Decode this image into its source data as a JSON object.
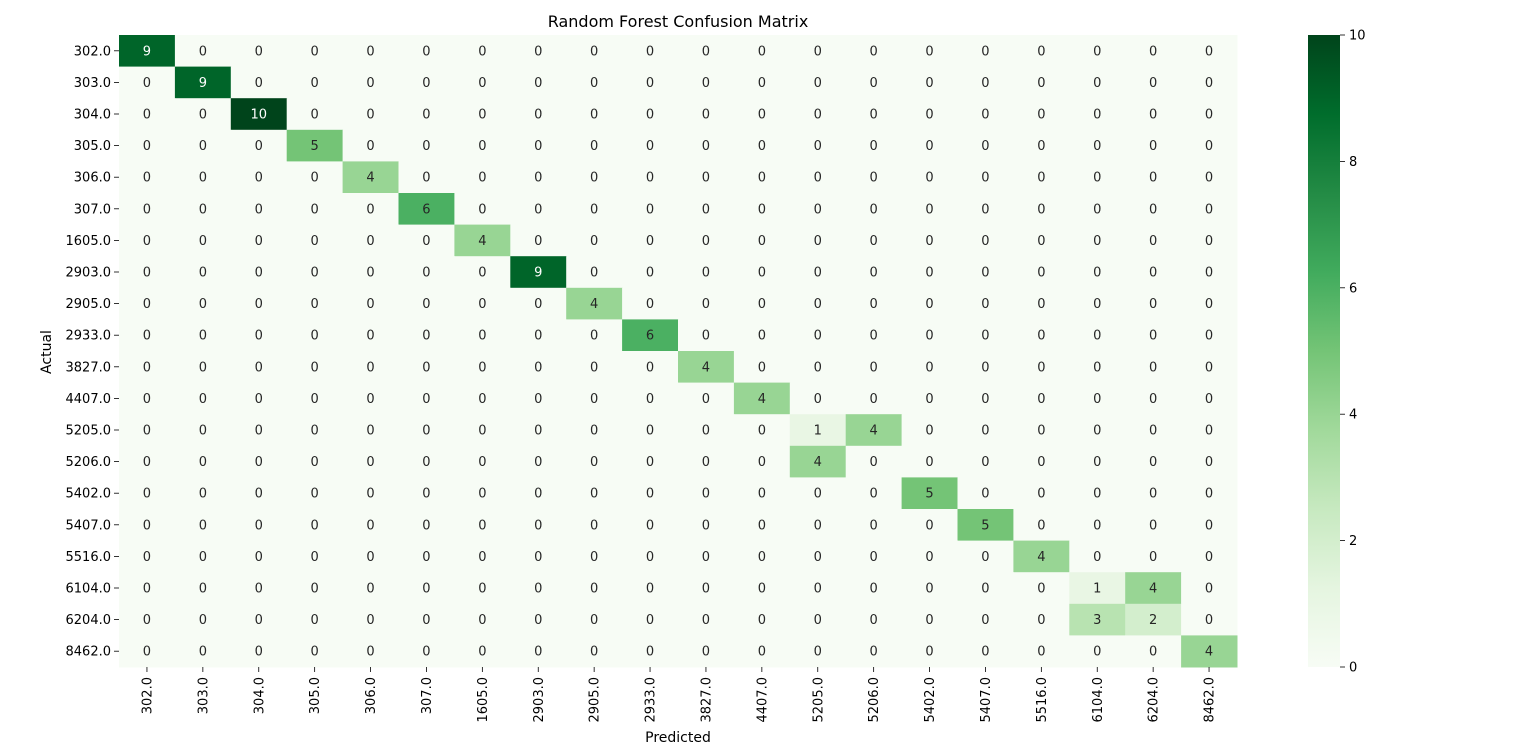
{
  "chart_data": {
    "type": "heatmap",
    "title": "Random Forest Confusion Matrix",
    "xlabel": "Predicted",
    "ylabel": "Actual",
    "x_categories": [
      "302.0",
      "303.0",
      "304.0",
      "305.0",
      "306.0",
      "307.0",
      "1605.0",
      "2903.0",
      "2905.0",
      "2933.0",
      "3827.0",
      "4407.0",
      "5205.0",
      "5206.0",
      "5402.0",
      "5407.0",
      "5516.0",
      "6104.0",
      "6204.0",
      "8462.0"
    ],
    "y_categories": [
      "302.0",
      "303.0",
      "304.0",
      "305.0",
      "306.0",
      "307.0",
      "1605.0",
      "2903.0",
      "2905.0",
      "2933.0",
      "3827.0",
      "4407.0",
      "5205.0",
      "5206.0",
      "5402.0",
      "5407.0",
      "5516.0",
      "6104.0",
      "6204.0",
      "8462.0"
    ],
    "values": [
      [
        9,
        0,
        0,
        0,
        0,
        0,
        0,
        0,
        0,
        0,
        0,
        0,
        0,
        0,
        0,
        0,
        0,
        0,
        0,
        0
      ],
      [
        0,
        9,
        0,
        0,
        0,
        0,
        0,
        0,
        0,
        0,
        0,
        0,
        0,
        0,
        0,
        0,
        0,
        0,
        0,
        0
      ],
      [
        0,
        0,
        10,
        0,
        0,
        0,
        0,
        0,
        0,
        0,
        0,
        0,
        0,
        0,
        0,
        0,
        0,
        0,
        0,
        0
      ],
      [
        0,
        0,
        0,
        5,
        0,
        0,
        0,
        0,
        0,
        0,
        0,
        0,
        0,
        0,
        0,
        0,
        0,
        0,
        0,
        0
      ],
      [
        0,
        0,
        0,
        0,
        4,
        0,
        0,
        0,
        0,
        0,
        0,
        0,
        0,
        0,
        0,
        0,
        0,
        0,
        0,
        0
      ],
      [
        0,
        0,
        0,
        0,
        0,
        6,
        0,
        0,
        0,
        0,
        0,
        0,
        0,
        0,
        0,
        0,
        0,
        0,
        0,
        0
      ],
      [
        0,
        0,
        0,
        0,
        0,
        0,
        4,
        0,
        0,
        0,
        0,
        0,
        0,
        0,
        0,
        0,
        0,
        0,
        0,
        0
      ],
      [
        0,
        0,
        0,
        0,
        0,
        0,
        0,
        9,
        0,
        0,
        0,
        0,
        0,
        0,
        0,
        0,
        0,
        0,
        0,
        0
      ],
      [
        0,
        0,
        0,
        0,
        0,
        0,
        0,
        0,
        4,
        0,
        0,
        0,
        0,
        0,
        0,
        0,
        0,
        0,
        0,
        0
      ],
      [
        0,
        0,
        0,
        0,
        0,
        0,
        0,
        0,
        0,
        6,
        0,
        0,
        0,
        0,
        0,
        0,
        0,
        0,
        0,
        0
      ],
      [
        0,
        0,
        0,
        0,
        0,
        0,
        0,
        0,
        0,
        0,
        4,
        0,
        0,
        0,
        0,
        0,
        0,
        0,
        0,
        0
      ],
      [
        0,
        0,
        0,
        0,
        0,
        0,
        0,
        0,
        0,
        0,
        0,
        4,
        0,
        0,
        0,
        0,
        0,
        0,
        0,
        0
      ],
      [
        0,
        0,
        0,
        0,
        0,
        0,
        0,
        0,
        0,
        0,
        0,
        0,
        1,
        4,
        0,
        0,
        0,
        0,
        0,
        0
      ],
      [
        0,
        0,
        0,
        0,
        0,
        0,
        0,
        0,
        0,
        0,
        0,
        0,
        4,
        0,
        0,
        0,
        0,
        0,
        0,
        0
      ],
      [
        0,
        0,
        0,
        0,
        0,
        0,
        0,
        0,
        0,
        0,
        0,
        0,
        0,
        0,
        5,
        0,
        0,
        0,
        0,
        0
      ],
      [
        0,
        0,
        0,
        0,
        0,
        0,
        0,
        0,
        0,
        0,
        0,
        0,
        0,
        0,
        0,
        5,
        0,
        0,
        0,
        0
      ],
      [
        0,
        0,
        0,
        0,
        0,
        0,
        0,
        0,
        0,
        0,
        0,
        0,
        0,
        0,
        0,
        0,
        4,
        0,
        0,
        0
      ],
      [
        0,
        0,
        0,
        0,
        0,
        0,
        0,
        0,
        0,
        0,
        0,
        0,
        0,
        0,
        0,
        0,
        0,
        1,
        4,
        0
      ],
      [
        0,
        0,
        0,
        0,
        0,
        0,
        0,
        0,
        0,
        0,
        0,
        0,
        0,
        0,
        0,
        0,
        0,
        3,
        2,
        0
      ],
      [
        0,
        0,
        0,
        0,
        0,
        0,
        0,
        0,
        0,
        0,
        0,
        0,
        0,
        0,
        0,
        0,
        0,
        0,
        0,
        4
      ]
    ],
    "colorbar": {
      "min": 0,
      "max": 10,
      "ticks": [
        0,
        2,
        4,
        6,
        8,
        10
      ]
    },
    "colormap": "Greens",
    "colormap_stops": [
      "#f7fcf5",
      "#e5f5e0",
      "#c7e9c0",
      "#a1d99b",
      "#74c476",
      "#41ab5d",
      "#238b45",
      "#006d2c",
      "#00441b"
    ],
    "annotation_colors": {
      "dark": "#262626",
      "light": "#ffffff"
    }
  }
}
